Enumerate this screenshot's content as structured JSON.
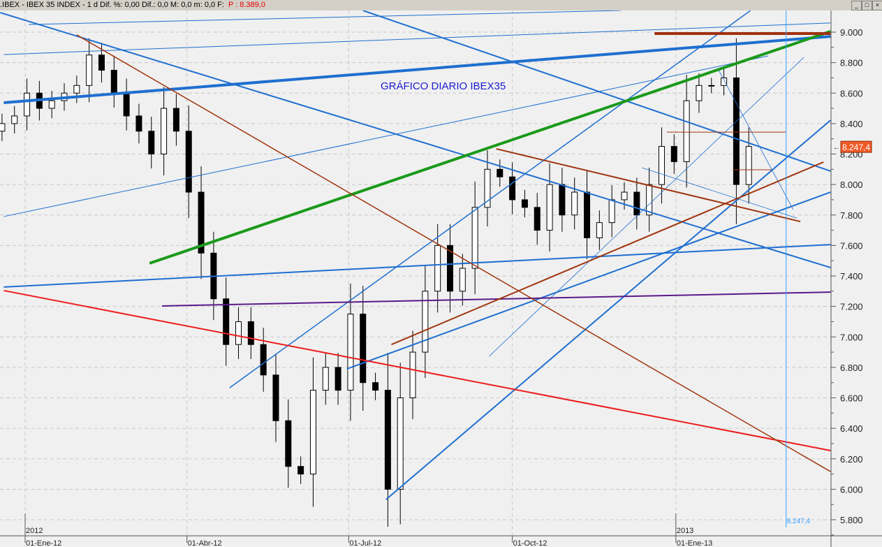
{
  "window": {
    "title": ".IBEX - IBEX 35 INDEX -  1 d Dif. %: 0,00  Dif.: 0,0  M: 0,0  m: 0,0  F:",
    "price_label": "P : 8.389,0",
    "buttons": [
      "_",
      "□",
      "×"
    ]
  },
  "chart_data": {
    "type": "candlestick",
    "title": "GRÁFICO DIARIO IBEX35",
    "title_color": "#1b1bd0",
    "ylim": [
      5800,
      9100
    ],
    "y_ticks": [
      5800,
      6000,
      6200,
      6400,
      6600,
      6800,
      7000,
      7200,
      7400,
      7600,
      7800,
      8000,
      8200,
      8400,
      8600,
      8800,
      9000
    ],
    "y_tick_labels": [
      "5.800",
      "6.000",
      "6.200",
      "6.400",
      "6.600",
      "6.800",
      "7.000",
      "7.200",
      "7.400",
      "7.600",
      "7.800",
      "8.000",
      "8.200",
      "8.400",
      "8.600",
      "8.800",
      "9.000"
    ],
    "x_ticks": [
      {
        "date": "2012-01-01",
        "label": "01-Ene-12",
        "year": "2012"
      },
      {
        "date": "2012-04-01",
        "label": "01-Abr-12",
        "year": ""
      },
      {
        "date": "2012-07-01",
        "label": "01-Jul-12",
        "year": ""
      },
      {
        "date": "2012-10-01",
        "label": "01-Oct-12",
        "year": ""
      },
      {
        "date": "2013-01-01",
        "label": "01-Ene-13",
        "year": "2013"
      }
    ],
    "grid": true,
    "first_bar_date": "2011-12-19",
    "bar_step_days": 7,
    "closes": [
      8400,
      8450,
      8600,
      8500,
      8550,
      8600,
      8650,
      8850,
      8750,
      8600,
      8450,
      8350,
      8200,
      8500,
      8350,
      7950,
      7550,
      7250,
      6950,
      7100,
      6950,
      6750,
      6450,
      6150,
      6100,
      6650,
      6800,
      6650,
      7150,
      6700,
      6650,
      6000,
      6600,
      6900,
      7300,
      7600,
      7300,
      7450,
      7850,
      8100,
      8050,
      7900,
      7850,
      7700,
      8000,
      7800,
      7950,
      7650,
      7750,
      7900,
      7950,
      7800,
      8000,
      8250,
      8150,
      8550,
      8650,
      8650,
      8700,
      8000,
      8250
    ],
    "last_price": {
      "value": 8247.4,
      "label": "8.247,4",
      "color": "#f05a28"
    },
    "cursor": {
      "date": "2013-03-04",
      "label": "8.247,4",
      "color": "#33a0ff"
    },
    "trendlines": [
      {
        "p1": [
          "2011-12-18",
          9128
        ],
        "p2": [
          "2013-03-29",
          7455
        ],
        "color": "#1e6fd0",
        "width": 2
      },
      {
        "p1": [
          "2012-07-09",
          9142
        ],
        "p2": [
          "2013-03-29",
          8088
        ],
        "color": "#1e6fd0",
        "width": 2
      },
      {
        "p1": [
          "2011-12-20",
          8853
        ],
        "p2": [
          "2013-03-29",
          9060
        ],
        "color": "#1e6fd0",
        "width": 1
      },
      {
        "p1": [
          "2012-01-03",
          9050
        ],
        "p2": [
          "2012-12-01",
          9142
        ],
        "color": "#1e6fd0",
        "width": 1
      },
      {
        "p1": [
          "2011-12-20",
          7790
        ],
        "p2": [
          "2013-02-22",
          8844
        ],
        "color": "#1e6fd0",
        "width": 1
      },
      {
        "p1": [
          "2012-04-25",
          6666
        ],
        "p2": [
          "2013-02-12",
          9142
        ],
        "color": "#1e6fd0",
        "width": 1.5
      },
      {
        "p1": [
          "2012-07-22",
          5933
        ],
        "p2": [
          "2013-03-29",
          8422
        ],
        "color": "#1e6fd0",
        "width": 2
      },
      {
        "p1": [
          "2012-06-30",
          6790
        ],
        "p2": [
          "2013-03-29",
          7950
        ],
        "color": "#1e6fd0",
        "width": 2
      },
      {
        "p1": [
          "2011-12-20",
          7327
        ],
        "p2": [
          "2013-03-29",
          7606
        ],
        "color": "#1e6fd0",
        "width": 2
      },
      {
        "p1": [
          "2012-09-18",
          6873
        ],
        "p2": [
          "2013-03-14",
          8835
        ],
        "color": "#1e6fd0",
        "width": 0.8
      },
      {
        "p1": [
          "2012-12-13",
          8110
        ],
        "p2": [
          "2013-03-10",
          7780
        ],
        "color": "#1e6fd0",
        "width": 0.8
      },
      {
        "p1": [
          "2013-01-25",
          8752
        ],
        "p2": [
          "2013-03-08",
          7835
        ],
        "color": "#1e6fd0",
        "width": 0.8
      },
      {
        "p1": [
          "2011-12-20",
          8537
        ],
        "p2": [
          "2013-03-29",
          8972
        ],
        "color": "#1e6fd0",
        "width": 4
      },
      {
        "p1": [
          "2012-03-11",
          7483
        ],
        "p2": [
          "2013-03-29",
          9005
        ],
        "color": "#1a9a1a",
        "width": 4
      },
      {
        "p1": [
          "2012-12-20",
          8991
        ],
        "p2": [
          "2013-03-29",
          8991
        ],
        "color": "#a0300f",
        "width": 4
      },
      {
        "p1": [
          "2011-12-20",
          7304
        ],
        "p2": [
          "2013-03-29",
          6254
        ],
        "color": "#ee1c1c",
        "width": 2
      },
      {
        "p1": [
          "2012-03-18",
          7203
        ],
        "p2": [
          "2013-03-29",
          7294
        ],
        "color": "#5a1a8a",
        "width": 2
      },
      {
        "p1": [
          "2012-01-30",
          8982
        ],
        "p2": [
          "2013-03-29",
          6116
        ],
        "color": "#a0360f",
        "width": 1.5
      },
      {
        "p1": [
          "2012-07-25",
          6950
        ],
        "p2": [
          "2013-03-25",
          8147
        ],
        "color": "#a0360f",
        "width": 2
      },
      {
        "p1": [
          "2012-09-22",
          8234
        ],
        "p2": [
          "2013-03-12",
          7757
        ],
        "color": "#a0360f",
        "width": 2
      },
      {
        "p1": [
          "2012-12-27",
          8344
        ],
        "p2": [
          "2013-03-04",
          8344
        ],
        "color": "#a0360f",
        "width": 1
      },
      {
        "p1": [
          "2013-02-02",
          8097
        ],
        "p2": [
          "2013-02-24",
          8097
        ],
        "color": "#a0360f",
        "width": 1
      }
    ]
  }
}
